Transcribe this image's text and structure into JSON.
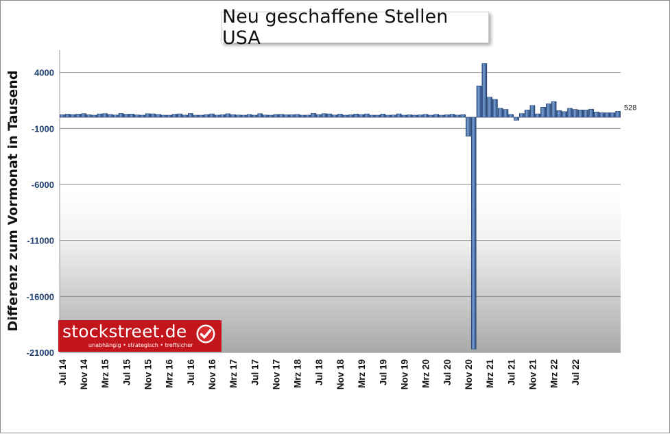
{
  "chart_data": {
    "type": "bar",
    "title": "Neu geschaffene Stellen USA",
    "ylabel": "Differenz zum Vormonat in Tausend",
    "xlabel": "",
    "ylim": [
      -21000,
      6000
    ],
    "yticks": [
      4000,
      -1000,
      -6000,
      -11000,
      -16000,
      -21000
    ],
    "grid": true,
    "x_tick_labels": [
      "Jul 14",
      "Nov 14",
      "Mrz 15",
      "Jul 15",
      "Nov 15",
      "Mrz 16",
      "Jul 16",
      "Nov 16",
      "Mrz 17",
      "Jul 17",
      "Nov 17",
      "Mrz 18",
      "Jul 18",
      "Nov 18",
      "Mrz 19",
      "Jul 19",
      "Nov 19",
      "Mrz 20",
      "Jul 20",
      "Nov 20",
      "Mrz 21",
      "Jul 21",
      "Nov 21",
      "Mrz 22",
      "Jul 22"
    ],
    "start": "2014-07",
    "values": [
      230,
      280,
      240,
      280,
      320,
      230,
      180,
      300,
      330,
      250,
      200,
      340,
      270,
      290,
      210,
      140,
      320,
      300,
      250,
      170,
      120,
      270,
      300,
      190,
      340,
      160,
      180,
      240,
      300,
      190,
      230,
      310,
      230,
      200,
      180,
      250,
      150,
      320,
      200,
      100,
      250,
      260,
      220,
      230,
      250,
      170,
      190,
      350,
      240,
      320,
      300,
      200,
      280,
      140,
      220,
      290,
      240,
      300,
      160,
      40,
      290,
      60,
      200,
      300,
      140,
      220,
      160,
      210,
      260,
      180,
      260,
      180,
      220,
      270,
      190,
      240,
      -1700,
      -20700,
      2800,
      4800,
      1800,
      1600,
      800,
      700,
      250,
      -270,
      330,
      650,
      1050,
      300,
      900,
      1200,
      1400,
      600,
      500,
      800,
      700,
      650,
      650,
      720,
      470,
      400,
      400,
      400,
      530
    ],
    "last_value_label": "528",
    "source_logo": {
      "name": "stockstreet.de",
      "tagline": "unabhängig • strategisch • treffsicher"
    },
    "colors": {
      "bar_fill": "#5b7fb4",
      "bar_dark": "#1f3f6f",
      "tick_color": "#1f3f6f",
      "logo_red": "#c3161c"
    }
  }
}
